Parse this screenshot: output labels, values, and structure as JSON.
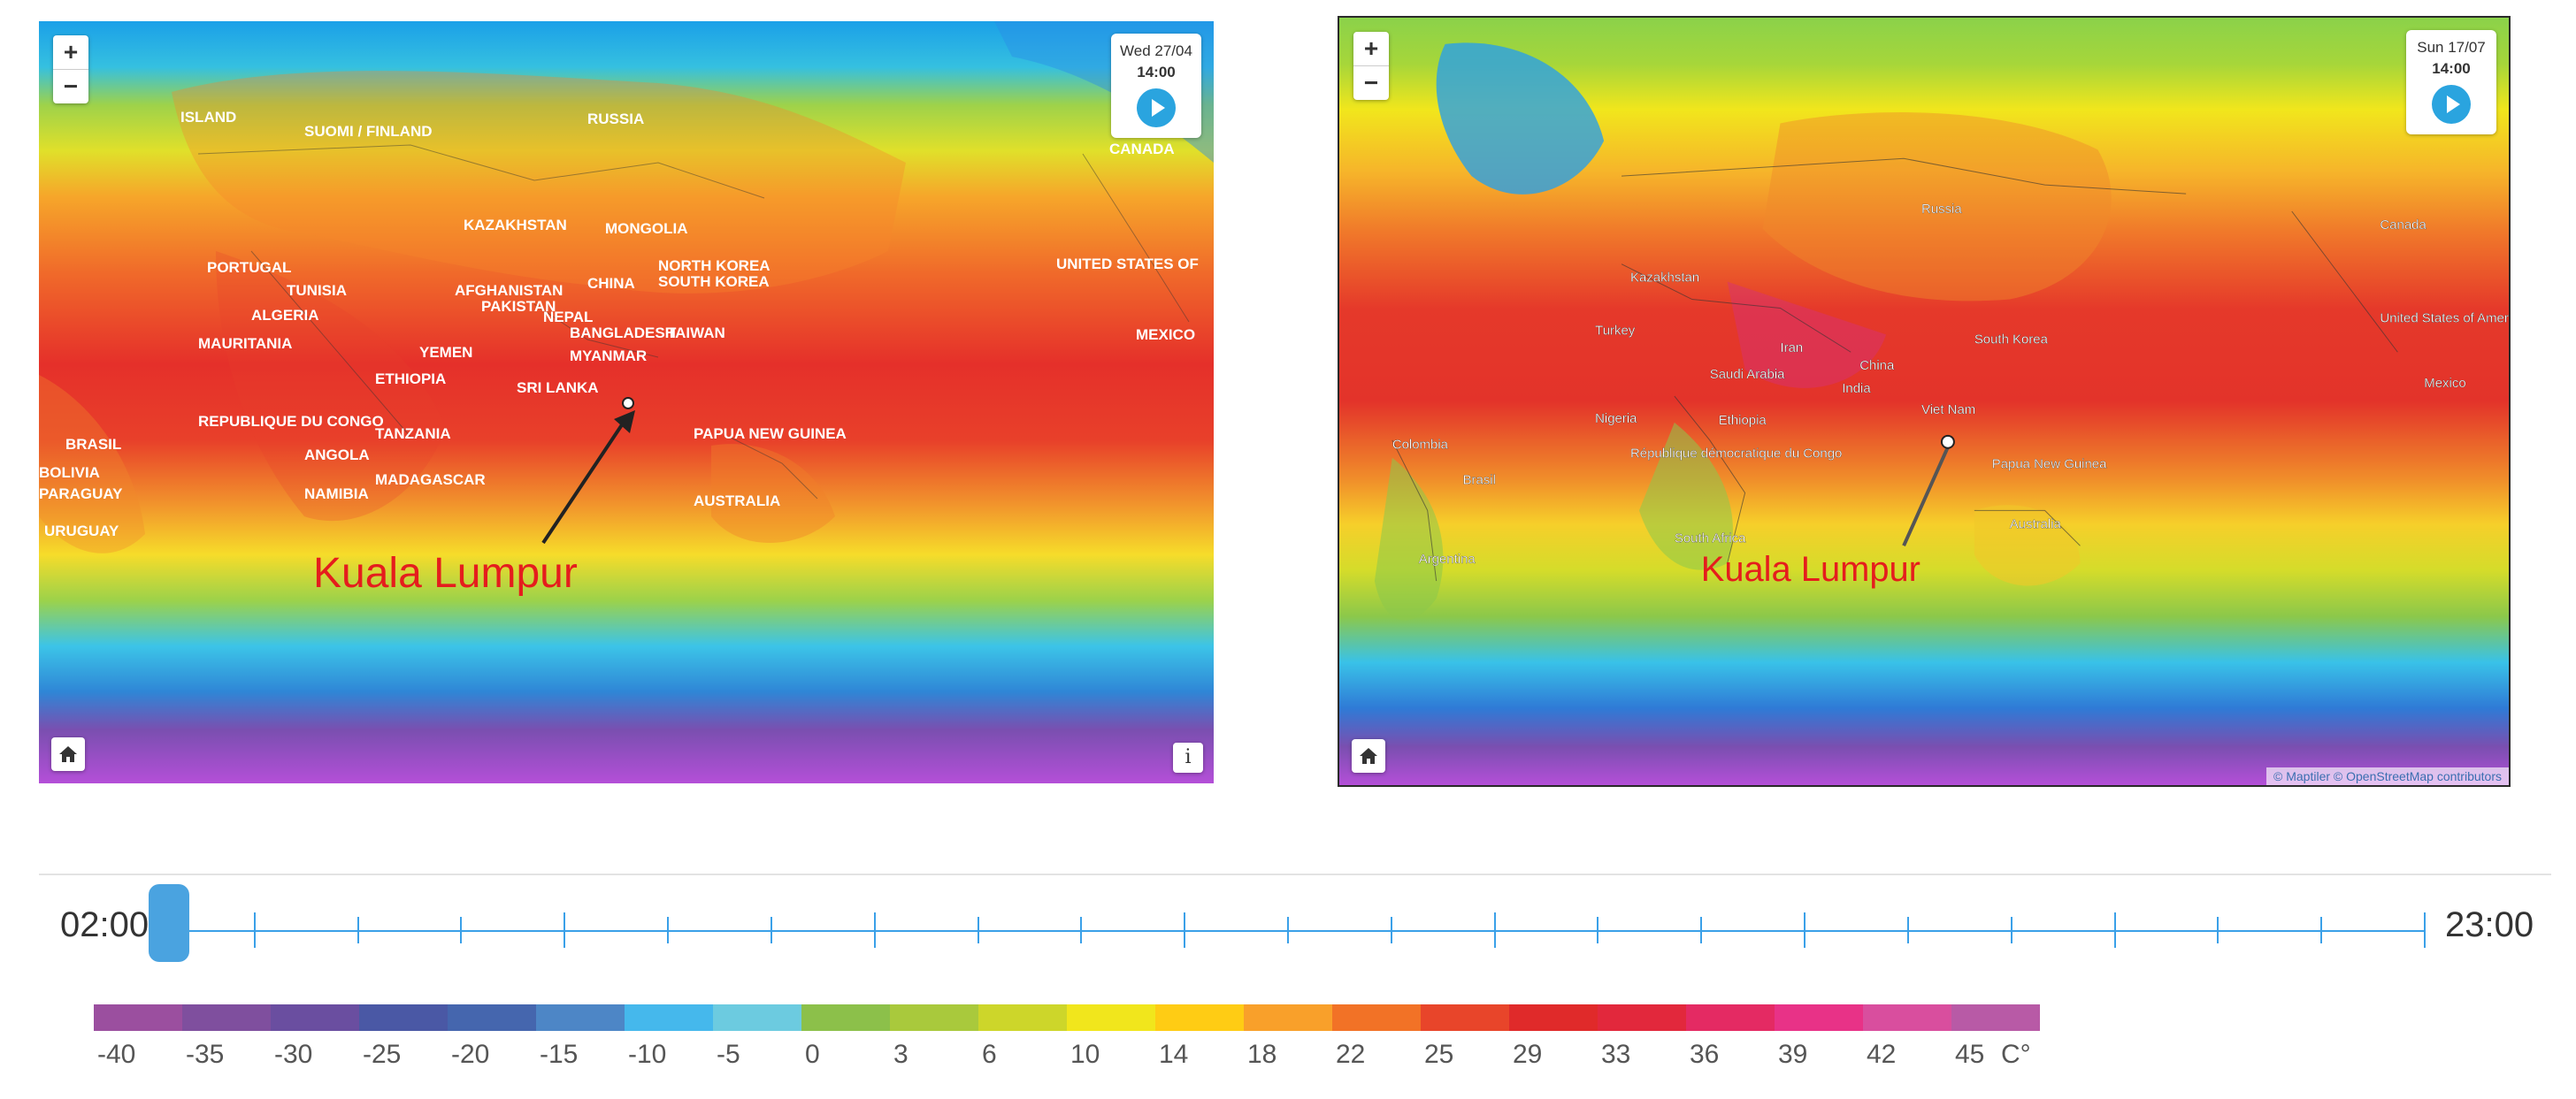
{
  "left_map": {
    "zoom_in": "+",
    "zoom_out": "−",
    "date": "Wed 27/04",
    "time": "14:00",
    "info": "i",
    "annotation": "Kuala Lumpur",
    "country_labels": [
      "ISLAND",
      "SUOMI / FINLAND",
      "RUSSIA",
      "CANADA",
      "UNITED STATES OF",
      "MONGOLIA",
      "NORTH KOREA",
      "SOUTH KOREA",
      "CHINA",
      "KAZAKHSTAN",
      "TUNISIA",
      "ALGERIA",
      "PORTUGAL",
      "AFGHANISTAN",
      "PAKISTAN",
      "NEPAL",
      "BANGLADESH",
      "TAIWAN",
      "MEXICO",
      "MAURITANIA",
      "YEMEN",
      "ETHIOPIA",
      "SRI LANKA",
      "PAPUA NEW GUINEA",
      "BRASIL",
      "ANGOLA",
      "REPUBLIQUE DU CONGO",
      "TANZANIA",
      "MADAGASCAR",
      "NAMIBIA",
      "AUSTRALIA",
      "BOLIVIA",
      "PARAGUAY",
      "URUGUAY",
      "MYANMAR"
    ]
  },
  "right_map": {
    "zoom_in": "+",
    "zoom_out": "−",
    "date": "Sun 17/07",
    "time": "14:00",
    "attribution": "© Maptiler © OpenStreetMap contributors",
    "annotation": "Kuala Lumpur",
    "country_labels": [
      "Russia",
      "Canada",
      "United States of America",
      "Kazakhstan",
      "Turkey",
      "Iran",
      "China",
      "South Korea",
      "Saudi Arabia",
      "India",
      "Nigeria",
      "Ethiopia",
      "Viet Nam",
      "Colombia",
      "Brasil",
      "Papua New Guinea",
      "République démocratique du Congo",
      "Australia",
      "South Africa",
      "Argentina",
      "Mexico"
    ]
  },
  "timeline": {
    "start": "02:00",
    "end": "23:00",
    "ticks": 23,
    "current_index": 0
  },
  "legend": {
    "labels": [
      "-40",
      "-35",
      "-30",
      "-25",
      "-20",
      "-15",
      "-10",
      "-5",
      "0",
      "3",
      "6",
      "10",
      "14",
      "18",
      "22",
      "25",
      "29",
      "33",
      "36",
      "39",
      "42",
      "45"
    ],
    "colors": [
      "#9b4f9f",
      "#7f4f9e",
      "#6a4ea0",
      "#4a58a5",
      "#4566ae",
      "#4d86c6",
      "#45b8ec",
      "#6ccbe0",
      "#8cc04a",
      "#a9c93c",
      "#cdd62a",
      "#f1e61c",
      "#ffcc14",
      "#f9a02a",
      "#f27226",
      "#e8452a",
      "#e02a2a",
      "#e2283c",
      "#e42a63",
      "#e83287",
      "#d94e9e",
      "#b85aa6"
    ],
    "unit": "C°"
  }
}
